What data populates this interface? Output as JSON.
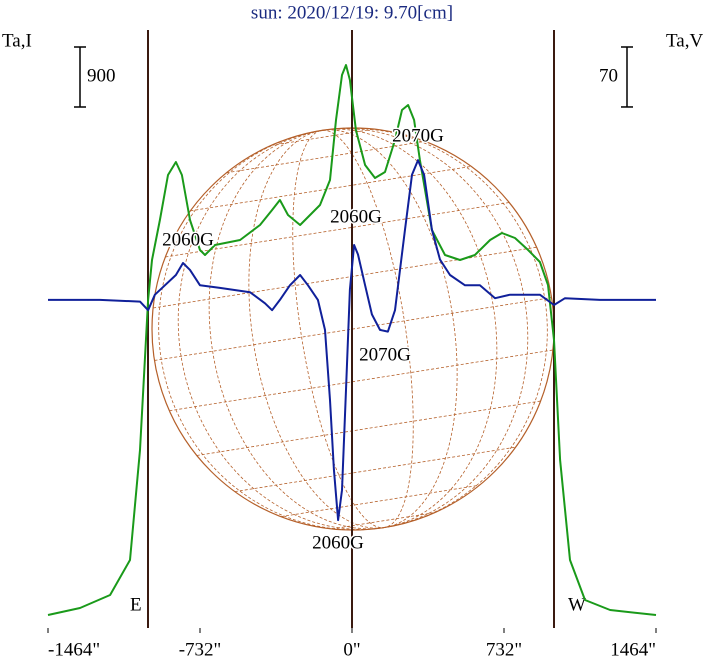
{
  "chart_data": {
    "type": "line",
    "title": "sun: 2020/12/19: 9.70[cm]",
    "y_label": "Ta,I",
    "y2_label": "Ta,V",
    "xlim": [
      -1464,
      1464
    ],
    "xticks": [
      {
        "value": -1464,
        "label": "-1464\""
      },
      {
        "value": -732,
        "label": "-732\""
      },
      {
        "value": 0,
        "label": "0\""
      },
      {
        "value": 732,
        "label": "732\""
      },
      {
        "value": 1464,
        "label": "1464\""
      }
    ],
    "ylim": [
      0,
      8970
    ],
    "y2lim": [
      -383,
      315
    ],
    "scale_bar": 900,
    "scale_bar2": 70,
    "limb_labels": [
      "E",
      "W"
    ],
    "annotations": [
      "2060G",
      "2060G",
      "2070G",
      "2070G",
      "2060G"
    ],
    "series": [
      {
        "name": "Ta,I",
        "color": "#1a9a1a",
        "axis": "y",
        "x": [
          -1464,
          -1310,
          -1165,
          -1069,
          -1021,
          -982,
          -963,
          -925,
          -886,
          -848,
          -819,
          -780,
          -732,
          -708,
          -660,
          -539,
          -443,
          -385,
          -347,
          -308,
          -250,
          -154,
          -106,
          -77,
          -48,
          -29,
          -10,
          19,
          63,
          111,
          159,
          207,
          241,
          270,
          299,
          327,
          385,
          448,
          520,
          592,
          665,
          722,
          785,
          848,
          905,
          944,
          973,
          1002,
          1050,
          1122,
          1243,
          1464
        ],
        "values": [
          195,
          300,
          495,
          1020,
          2670,
          4920,
          5520,
          6120,
          6795,
          6990,
          6795,
          6120,
          5670,
          5595,
          5745,
          5820,
          6045,
          6270,
          6420,
          6195,
          6045,
          6345,
          6720,
          7620,
          8295,
          8445,
          8220,
          7470,
          6945,
          6750,
          6840,
          7320,
          7770,
          7845,
          7620,
          7020,
          5970,
          5595,
          5520,
          5595,
          5820,
          5925,
          5850,
          5670,
          5490,
          5145,
          4320,
          2520,
          1020,
          420,
          270,
          195
        ]
      },
      {
        "name": "Ta,V",
        "color": "#10209a",
        "axis": "y2",
        "x": [
          -1464,
          -1214,
          -1021,
          -982,
          -949,
          -901,
          -848,
          -814,
          -780,
          -732,
          -636,
          -491,
          -419,
          -385,
          -347,
          -299,
          -250,
          -212,
          -164,
          -130,
          -106,
          -87,
          -67,
          -48,
          -29,
          -10,
          10,
          29,
          63,
          96,
          135,
          173,
          207,
          255,
          289,
          318,
          347,
          385,
          424,
          472,
          544,
          616,
          689,
          761,
          833,
          905,
          973,
          1026,
          1194,
          1464
        ],
        "values": [
          0,
          0,
          -2,
          -12,
          6,
          17,
          29,
          43,
          35,
          17,
          14,
          9,
          -4,
          -12,
          0,
          17,
          29,
          17,
          0,
          -35,
          -117,
          -198,
          -257,
          -222,
          -105,
          12,
          64,
          53,
          17,
          -17,
          -35,
          -37,
          -12,
          82,
          146,
          163,
          146,
          82,
          47,
          29,
          17,
          17,
          2,
          6,
          6,
          6,
          -6,
          2,
          0,
          0
        ]
      }
    ]
  }
}
